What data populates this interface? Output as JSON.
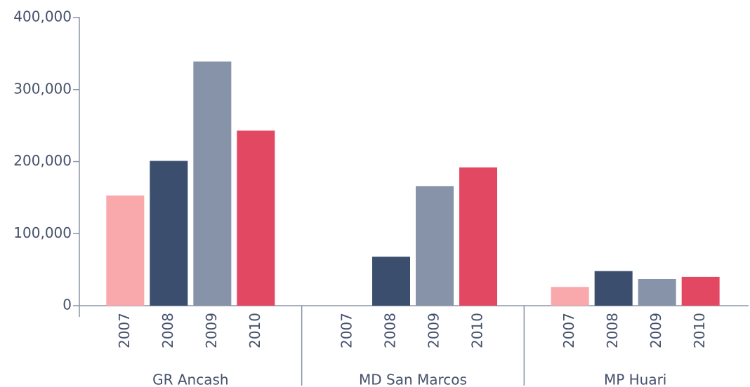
{
  "chart_data": {
    "type": "bar",
    "categories": [
      "GR Ancash",
      "MD San Marcos",
      "MP Huari"
    ],
    "series": [
      {
        "name": "2007",
        "color": "#f9a8ab",
        "values": [
          153000,
          0,
          26000
        ]
      },
      {
        "name": "2008",
        "color": "#3b4e6e",
        "values": [
          201000,
          68000,
          48000
        ]
      },
      {
        "name": "2009",
        "color": "#8793a8",
        "values": [
          339000,
          166000,
          37000
        ]
      },
      {
        "name": "2010",
        "color": "#e34862",
        "values": [
          243000,
          192000,
          40000
        ]
      }
    ],
    "ylim": [
      0,
      400000
    ],
    "yticks": [
      0,
      {
        "value": 100000,
        "label": "100,000"
      },
      {
        "value": 200000,
        "label": "200,000"
      },
      {
        "value": 300000,
        "label": "300,000"
      },
      {
        "value": 400000,
        "label": "400,000"
      }
    ],
    "grid": false
  }
}
